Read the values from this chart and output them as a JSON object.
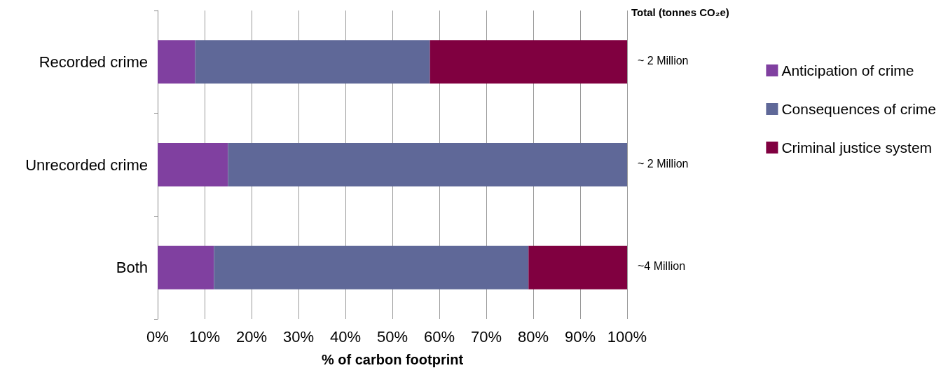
{
  "chart_data": {
    "type": "bar",
    "orientation": "horizontal",
    "stacked": true,
    "xlabel": "% of carbon footprint",
    "categories": [
      "Recorded crime",
      "Unrecorded crime",
      "Both"
    ],
    "series": [
      {
        "name": "Anticipation of crime",
        "color": "#8040a0",
        "values": [
          8,
          15,
          12
        ]
      },
      {
        "name": "Consequences of crime",
        "color": "#5f6898",
        "values": [
          50,
          85,
          67
        ]
      },
      {
        "name": "Criminal justice system",
        "color": "#800040",
        "values": [
          42,
          0,
          21
        ]
      }
    ],
    "xlim": [
      0,
      100
    ],
    "xticks": [
      {
        "value": 0,
        "label": "0%"
      },
      {
        "value": 10,
        "label": "10%"
      },
      {
        "value": 20,
        "label": "20%"
      },
      {
        "value": 30,
        "label": "30%"
      },
      {
        "value": 40,
        "label": "40%"
      },
      {
        "value": 50,
        "label": "50%"
      },
      {
        "value": 60,
        "label": "60%"
      },
      {
        "value": 70,
        "label": "70%"
      },
      {
        "value": 80,
        "label": "80%"
      },
      {
        "value": 90,
        "label": "90%"
      },
      {
        "value": 100,
        "label": "100%"
      }
    ],
    "grid": "x",
    "legend": "right",
    "annotations": [
      "Total (tonnes CO₂e)",
      "~ 2 Million",
      "~ 2 Million",
      "~4 Million"
    ]
  }
}
